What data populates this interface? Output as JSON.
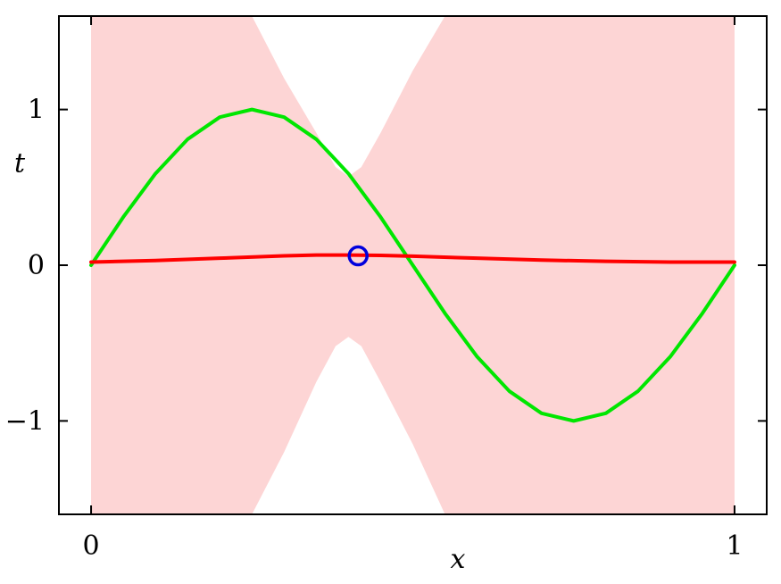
{
  "chart_data": {
    "type": "line",
    "title": "",
    "xlabel": "x",
    "ylabel": "t",
    "xlim": [
      -0.05,
      1.05
    ],
    "ylim": [
      -1.6,
      1.6
    ],
    "x_ticks": [
      {
        "value": 0,
        "label": "0"
      },
      {
        "value": 1,
        "label": "1"
      }
    ],
    "y_ticks": [
      {
        "value": 1,
        "label": "1"
      },
      {
        "value": 0,
        "label": "0"
      },
      {
        "value": -1,
        "label": "−1"
      }
    ],
    "grid": false,
    "legend": "none",
    "colors": {
      "true_function": "#00e600",
      "predictive_mean": "#ff0000",
      "uncertainty_band": "#fdd5d5",
      "observation": "#0000dd"
    },
    "series": [
      {
        "type": "line",
        "color_key": "true_function",
        "x": [
          0,
          0.05,
          0.1,
          0.15,
          0.2,
          0.25,
          0.3,
          0.35,
          0.4,
          0.45,
          0.5,
          0.55,
          0.6,
          0.65,
          0.7,
          0.75,
          0.8,
          0.85,
          0.9,
          0.95,
          1.0
        ],
        "y": [
          0,
          0.309,
          0.588,
          0.809,
          0.951,
          1.0,
          0.951,
          0.809,
          0.588,
          0.309,
          0,
          -0.309,
          -0.588,
          -0.809,
          -0.951,
          -1.0,
          -0.951,
          -0.809,
          -0.588,
          -0.309,
          0
        ]
      },
      {
        "type": "line",
        "color_key": "predictive_mean",
        "x": [
          0,
          0.1,
          0.2,
          0.3,
          0.35,
          0.4,
          0.45,
          0.5,
          0.6,
          0.7,
          0.8,
          0.9,
          1.0
        ],
        "y": [
          0.02,
          0.03,
          0.045,
          0.06,
          0.065,
          0.065,
          0.063,
          0.058,
          0.045,
          0.033,
          0.025,
          0.02,
          0.02
        ]
      },
      {
        "type": "area",
        "color_key": "uncertainty_band",
        "x": [
          0,
          0.25,
          0.3,
          0.35,
          0.38,
          0.4,
          0.42,
          0.45,
          0.5,
          0.55,
          0.6,
          1.0
        ],
        "upper": [
          2.0,
          1.6,
          1.2,
          0.85,
          0.63,
          0.57,
          0.63,
          0.85,
          1.25,
          1.6,
          2.0,
          2.0
        ],
        "lower": [
          -2.0,
          -1.6,
          -1.2,
          -0.75,
          -0.52,
          -0.46,
          -0.52,
          -0.75,
          -1.15,
          -1.6,
          -2.0,
          -2.0
        ]
      },
      {
        "type": "scatter",
        "color_key": "observation",
        "x": [
          0.415
        ],
        "y": [
          0.06
        ]
      }
    ]
  }
}
